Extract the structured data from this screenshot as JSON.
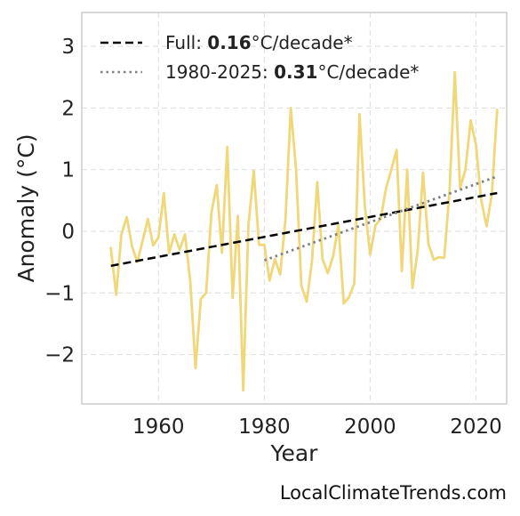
{
  "chart_data": {
    "type": "line",
    "xlabel": "Year",
    "ylabel": "Anomaly (°C)",
    "xlim": [
      1945.5,
      2025.8
    ],
    "ylim": [
      -2.8,
      3.55
    ],
    "xticks": [
      1960,
      1980,
      2000,
      2020
    ],
    "xtick_labels": [
      "1960",
      "1980",
      "2000",
      "2020"
    ],
    "yticks": [
      3,
      2,
      1,
      0,
      -1,
      -2
    ],
    "ytick_labels": [
      "3",
      "2",
      "1",
      "0",
      "−1",
      "−2"
    ],
    "grid": true,
    "legend_position": "top-left",
    "series": [
      {
        "color": "#f0d77a",
        "style": "solid",
        "x": [
          1951,
          1952,
          1953,
          1954,
          1955,
          1956,
          1957,
          1958,
          1959,
          1960,
          1961,
          1962,
          1963,
          1964,
          1965,
          1966,
          1967,
          1968,
          1969,
          1970,
          1971,
          1972,
          1973,
          1974,
          1975,
          1976,
          1977,
          1978,
          1979,
          1980,
          1981,
          1982,
          1983,
          1984,
          1985,
          1986,
          1987,
          1988,
          1989,
          1990,
          1991,
          1992,
          1993,
          1994,
          1995,
          1996,
          1997,
          1998,
          1999,
          2000,
          2001,
          2002,
          2003,
          2004,
          2005,
          2006,
          2007,
          2008,
          2009,
          2010,
          2011,
          2012,
          2013,
          2014,
          2015,
          2016,
          2017,
          2018,
          2019,
          2020,
          2021,
          2022,
          2023,
          2024
        ],
        "values": [
          -0.27,
          -1.03,
          -0.05,
          0.23,
          -0.25,
          -0.5,
          -0.15,
          0.2,
          -0.23,
          -0.1,
          0.62,
          -0.35,
          -0.05,
          -0.3,
          -0.05,
          -0.8,
          -2.22,
          -1.1,
          -1.0,
          0.3,
          0.75,
          -0.35,
          1.37,
          -1.08,
          0.25,
          -2.58,
          0.1,
          0.98,
          -0.22,
          -0.22,
          -0.8,
          -0.45,
          -0.7,
          0.2,
          2.0,
          1.0,
          -0.88,
          -1.14,
          -0.5,
          0.8,
          -0.45,
          -0.68,
          -0.4,
          0.1,
          -1.17,
          -1.07,
          -0.85,
          1.9,
          0.4,
          -0.38,
          0.1,
          0.2,
          0.7,
          1.0,
          1.32,
          -0.65,
          1.0,
          -0.92,
          -0.3,
          0.95,
          -0.2,
          -0.46,
          -0.42,
          -0.43,
          0.65,
          2.58,
          0.7,
          1.0,
          1.8,
          1.4,
          0.5,
          0.08,
          0.6,
          1.97
        ]
      },
      {
        "name": "Full",
        "color": "#000000",
        "style": "dashed",
        "x": [
          1951,
          2024
        ],
        "values": [
          -0.56,
          0.62
        ]
      },
      {
        "name": "1980-2025",
        "color": "#808080",
        "style": "dotted",
        "x": [
          1980,
          2024
        ],
        "values": [
          -0.47,
          0.89
        ]
      }
    ],
    "legend": [
      {
        "prefix": "Full: ",
        "value": "0.16",
        "suffix": "°C/decade*",
        "style": "dashed",
        "color": "#000000"
      },
      {
        "prefix": "1980-2025: ",
        "value": "0.31",
        "suffix": "°C/decade*",
        "style": "dotted",
        "color": "#808080"
      }
    ]
  },
  "footer": {
    "credit": "LocalClimateTrends.com"
  }
}
